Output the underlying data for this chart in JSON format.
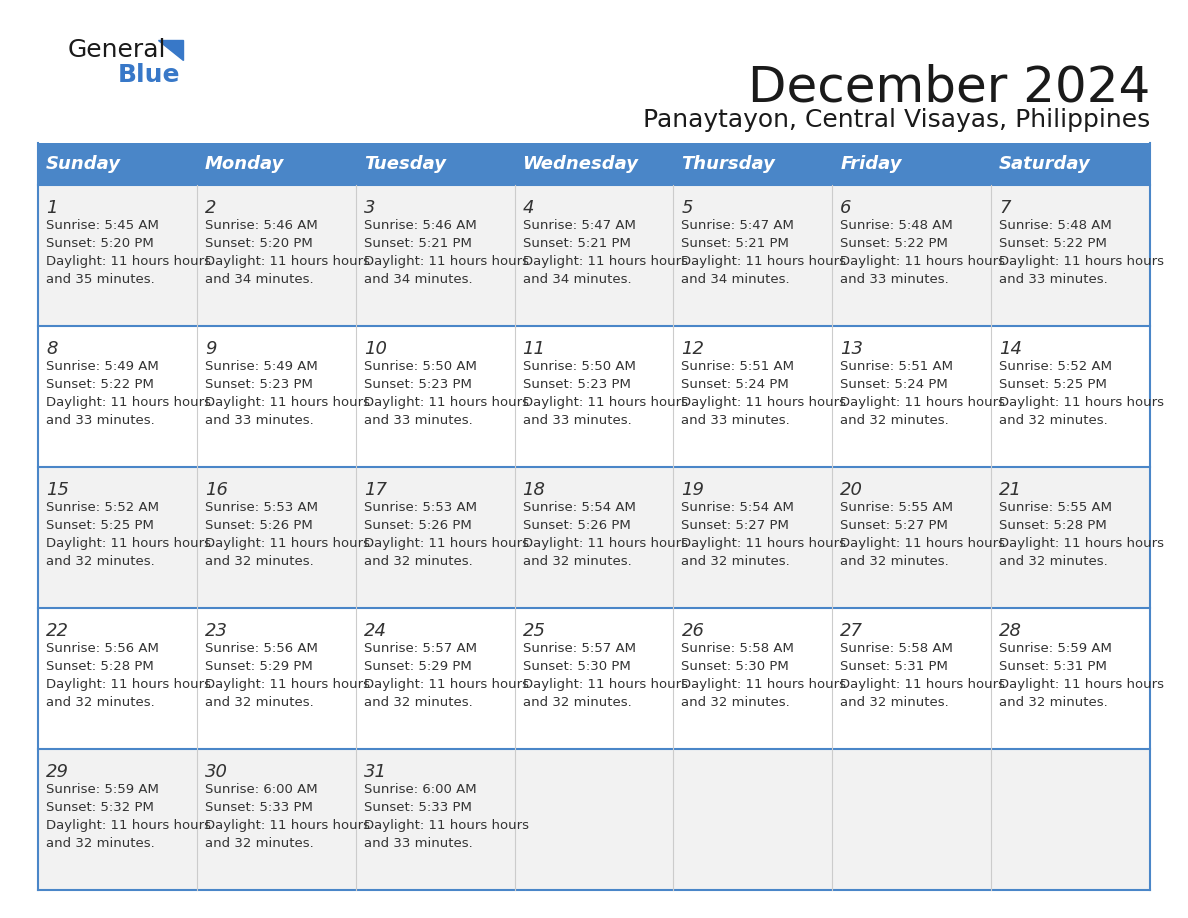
{
  "title": "December 2024",
  "subtitle": "Panaytayon, Central Visayas, Philippines",
  "days_of_week": [
    "Sunday",
    "Monday",
    "Tuesday",
    "Wednesday",
    "Thursday",
    "Friday",
    "Saturday"
  ],
  "header_bg": "#4a86c8",
  "header_text": "#ffffff",
  "row_bg_odd": "#f2f2f2",
  "row_bg_even": "#ffffff",
  "border_color": "#4a86c8",
  "text_color": "#333333",
  "calendar_data": [
    [
      {
        "day": 1,
        "sunrise": "5:45 AM",
        "sunset": "5:20 PM",
        "daylight": "11 hours and 35 minutes."
      },
      {
        "day": 2,
        "sunrise": "5:46 AM",
        "sunset": "5:20 PM",
        "daylight": "11 hours and 34 minutes."
      },
      {
        "day": 3,
        "sunrise": "5:46 AM",
        "sunset": "5:21 PM",
        "daylight": "11 hours and 34 minutes."
      },
      {
        "day": 4,
        "sunrise": "5:47 AM",
        "sunset": "5:21 PM",
        "daylight": "11 hours and 34 minutes."
      },
      {
        "day": 5,
        "sunrise": "5:47 AM",
        "sunset": "5:21 PM",
        "daylight": "11 hours and 34 minutes."
      },
      {
        "day": 6,
        "sunrise": "5:48 AM",
        "sunset": "5:22 PM",
        "daylight": "11 hours and 33 minutes."
      },
      {
        "day": 7,
        "sunrise": "5:48 AM",
        "sunset": "5:22 PM",
        "daylight": "11 hours and 33 minutes."
      }
    ],
    [
      {
        "day": 8,
        "sunrise": "5:49 AM",
        "sunset": "5:22 PM",
        "daylight": "11 hours and 33 minutes."
      },
      {
        "day": 9,
        "sunrise": "5:49 AM",
        "sunset": "5:23 PM",
        "daylight": "11 hours and 33 minutes."
      },
      {
        "day": 10,
        "sunrise": "5:50 AM",
        "sunset": "5:23 PM",
        "daylight": "11 hours and 33 minutes."
      },
      {
        "day": 11,
        "sunrise": "5:50 AM",
        "sunset": "5:23 PM",
        "daylight": "11 hours and 33 minutes."
      },
      {
        "day": 12,
        "sunrise": "5:51 AM",
        "sunset": "5:24 PM",
        "daylight": "11 hours and 33 minutes."
      },
      {
        "day": 13,
        "sunrise": "5:51 AM",
        "sunset": "5:24 PM",
        "daylight": "11 hours and 32 minutes."
      },
      {
        "day": 14,
        "sunrise": "5:52 AM",
        "sunset": "5:25 PM",
        "daylight": "11 hours and 32 minutes."
      }
    ],
    [
      {
        "day": 15,
        "sunrise": "5:52 AM",
        "sunset": "5:25 PM",
        "daylight": "11 hours and 32 minutes."
      },
      {
        "day": 16,
        "sunrise": "5:53 AM",
        "sunset": "5:26 PM",
        "daylight": "11 hours and 32 minutes."
      },
      {
        "day": 17,
        "sunrise": "5:53 AM",
        "sunset": "5:26 PM",
        "daylight": "11 hours and 32 minutes."
      },
      {
        "day": 18,
        "sunrise": "5:54 AM",
        "sunset": "5:26 PM",
        "daylight": "11 hours and 32 minutes."
      },
      {
        "day": 19,
        "sunrise": "5:54 AM",
        "sunset": "5:27 PM",
        "daylight": "11 hours and 32 minutes."
      },
      {
        "day": 20,
        "sunrise": "5:55 AM",
        "sunset": "5:27 PM",
        "daylight": "11 hours and 32 minutes."
      },
      {
        "day": 21,
        "sunrise": "5:55 AM",
        "sunset": "5:28 PM",
        "daylight": "11 hours and 32 minutes."
      }
    ],
    [
      {
        "day": 22,
        "sunrise": "5:56 AM",
        "sunset": "5:28 PM",
        "daylight": "11 hours and 32 minutes."
      },
      {
        "day": 23,
        "sunrise": "5:56 AM",
        "sunset": "5:29 PM",
        "daylight": "11 hours and 32 minutes."
      },
      {
        "day": 24,
        "sunrise": "5:57 AM",
        "sunset": "5:29 PM",
        "daylight": "11 hours and 32 minutes."
      },
      {
        "day": 25,
        "sunrise": "5:57 AM",
        "sunset": "5:30 PM",
        "daylight": "11 hours and 32 minutes."
      },
      {
        "day": 26,
        "sunrise": "5:58 AM",
        "sunset": "5:30 PM",
        "daylight": "11 hours and 32 minutes."
      },
      {
        "day": 27,
        "sunrise": "5:58 AM",
        "sunset": "5:31 PM",
        "daylight": "11 hours and 32 minutes."
      },
      {
        "day": 28,
        "sunrise": "5:59 AM",
        "sunset": "5:31 PM",
        "daylight": "11 hours and 32 minutes."
      }
    ],
    [
      {
        "day": 29,
        "sunrise": "5:59 AM",
        "sunset": "5:32 PM",
        "daylight": "11 hours and 32 minutes."
      },
      {
        "day": 30,
        "sunrise": "6:00 AM",
        "sunset": "5:33 PM",
        "daylight": "11 hours and 32 minutes."
      },
      {
        "day": 31,
        "sunrise": "6:00 AM",
        "sunset": "5:33 PM",
        "daylight": "11 hours and 33 minutes."
      },
      null,
      null,
      null,
      null
    ]
  ]
}
